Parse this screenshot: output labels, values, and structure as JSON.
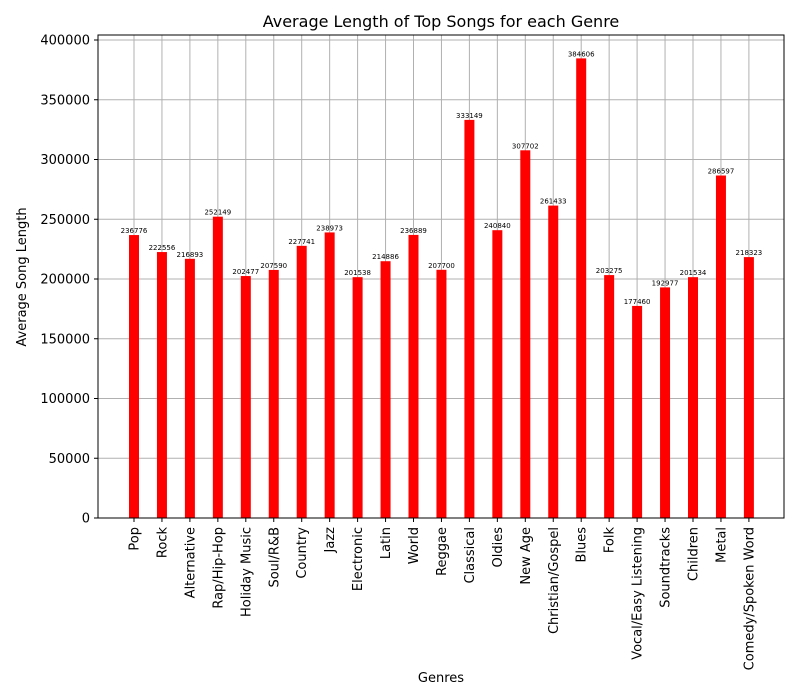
{
  "chart_data": {
    "type": "bar",
    "title": "Average Length of Top Songs for each Genre",
    "xlabel": "Genres",
    "ylabel": "Average Song Length",
    "ylim": [
      0,
      400000
    ],
    "yticks": [
      0,
      50000,
      100000,
      150000,
      200000,
      250000,
      300000,
      350000,
      400000
    ],
    "grid": true,
    "bar_color": "#ff0000",
    "categories": [
      "Pop",
      "Rock",
      "Alternative",
      "Rap/Hip-Hop",
      "Holiday Music",
      "Soul/R&B",
      "Country",
      "Jazz",
      "Electronic",
      "Latin",
      "World",
      "Reggae",
      "Classical",
      "Oldies",
      "New Age",
      "Christian/Gospel",
      "Blues",
      "Folk",
      "Vocal/Easy Listening",
      "Soundtracks",
      "Children",
      "Metal",
      "Comedy/Spoken Word"
    ],
    "values": [
      236776,
      222556,
      216893,
      252149,
      202477,
      207590,
      227741,
      238973,
      201538,
      214886,
      236889,
      207700,
      333149,
      240840,
      307702,
      261433,
      384606,
      203275,
      177460,
      192977,
      201534,
      286597,
      218323
    ]
  }
}
